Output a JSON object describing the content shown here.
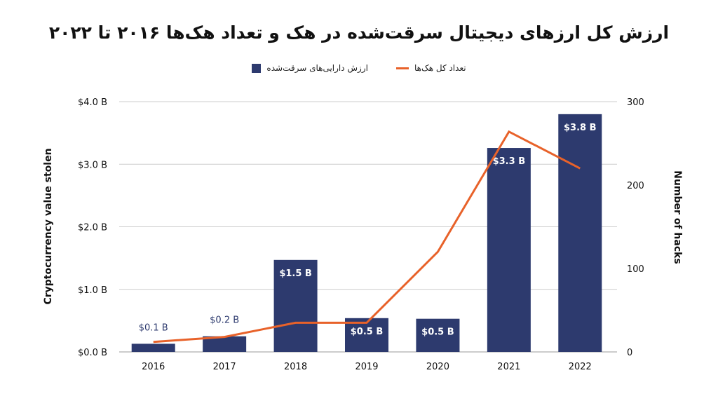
{
  "chart_data": {
    "type": "bar+line",
    "title": "ارزش کل ارزهای دیجیتال سرقت‌شده در هک و تعداد هک‌ها ۲۰۱۶ تا ۲۰۲۲",
    "categories": [
      "2016",
      "2017",
      "2018",
      "2019",
      "2020",
      "2021",
      "2022"
    ],
    "series": [
      {
        "name": "ارزش دارایی‌های سرقت‌شده",
        "type": "bar",
        "axis": "left",
        "color": "#2d3a6e",
        "values": [
          0.13,
          0.25,
          1.47,
          0.54,
          0.53,
          3.26,
          3.8
        ],
        "labels": [
          "$0.1 B",
          "$0.2 B",
          "$1.5 B",
          "$0.5 B",
          "$0.5 B",
          "$3.3 B",
          "$3.8 B"
        ]
      },
      {
        "name": "تعداد کل هک‌ها",
        "type": "line",
        "axis": "right",
        "color": "#e8622a",
        "values": [
          12,
          18,
          35,
          35,
          120,
          264,
          220
        ]
      }
    ],
    "ylabel_left": "Cryptocurrency value stolen",
    "ylabel_right": "Number of hacks",
    "ylim_left": [
      0,
      4
    ],
    "ylim_right": [
      0,
      300
    ],
    "yticks_left": [
      "$0.0 B",
      "$1.0 B",
      "$2.0 B",
      "$3.0 B",
      "$4.0 B"
    ],
    "yticks_right": [
      "0",
      "100",
      "200",
      "300"
    ],
    "grid": true,
    "legend": "top-center"
  }
}
